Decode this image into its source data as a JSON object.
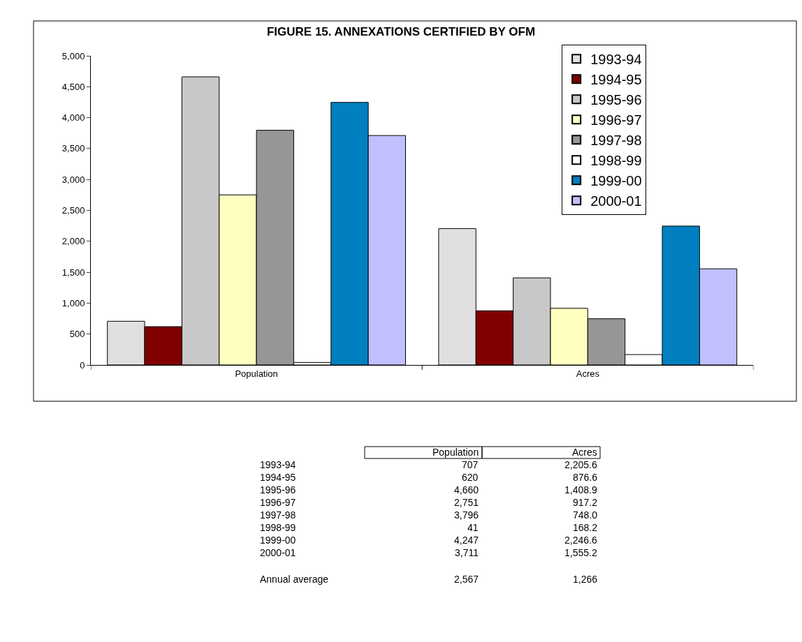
{
  "chart_data": {
    "type": "bar",
    "title": "FIGURE 15. ANNEXATIONS CERTIFIED BY OFM",
    "categories": [
      "Population",
      "Acres"
    ],
    "series": [
      {
        "name": "1993-94",
        "color": "#e0e0e0",
        "values": [
          707,
          2205.6
        ]
      },
      {
        "name": "1994-95",
        "color": "#800000",
        "values": [
          620,
          876.6
        ]
      },
      {
        "name": "1995-96",
        "color": "#c8c8c8",
        "values": [
          4660,
          1408.9
        ]
      },
      {
        "name": "1996-97",
        "color": "#ffffc0",
        "values": [
          2751,
          917.2
        ]
      },
      {
        "name": "1997-98",
        "color": "#969696",
        "values": [
          3796,
          748.0
        ]
      },
      {
        "name": "1998-99",
        "color": "#ffffff",
        "values": [
          41,
          168.2
        ]
      },
      {
        "name": "1999-00",
        "color": "#0080c0",
        "values": [
          4247,
          2246.6
        ]
      },
      {
        "name": "2000-01",
        "color": "#c0c0ff",
        "values": [
          3711,
          1555.2
        ]
      }
    ],
    "ylim": [
      0,
      5000
    ],
    "yticks": [
      {
        "value": 0,
        "label": "0"
      },
      {
        "value": 500,
        "label": "500"
      },
      {
        "value": 1000,
        "label": "1,000"
      },
      {
        "value": 1500,
        "label": "1,500"
      },
      {
        "value": 2000,
        "label": "2,000"
      },
      {
        "value": 2500,
        "label": "2,500"
      },
      {
        "value": 3000,
        "label": "3,000"
      },
      {
        "value": 3500,
        "label": "3,500"
      },
      {
        "value": 4000,
        "label": "4,000"
      },
      {
        "value": 4500,
        "label": "4,500"
      },
      {
        "value": 5000,
        "label": "5,000"
      }
    ],
    "legend": "top right",
    "annotations": [
      "707",
      "2,205.6",
      "620",
      "876.6",
      "4,660",
      "1,408.9",
      "2,751",
      "917.2",
      "3,796",
      "748.0",
      "41",
      "168.2",
      "4,247",
      "2,246.6",
      "3,711",
      "1,555.2",
      "Annual average",
      "2,567",
      "1,266"
    ]
  }
}
